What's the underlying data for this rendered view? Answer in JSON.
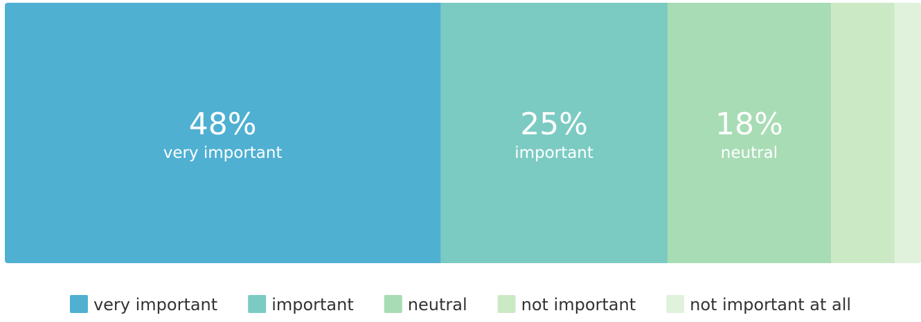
{
  "chart_data": {
    "type": "bar",
    "orientation": "horizontal-stacked",
    "categories": [
      "very important",
      "important",
      "neutral",
      "not important",
      "not important at all"
    ],
    "values": [
      48,
      25,
      18,
      7,
      3
    ],
    "unit": "%",
    "segment_labels": [
      "48%",
      "25%",
      "18%",
      "",
      ""
    ],
    "colors": [
      "#4fb0d2",
      "#7ccbc3",
      "#a8dcb5",
      "#cce9c6",
      "#e0f2db"
    ],
    "legend": {
      "position": "bottom",
      "entries": [
        "very important",
        "important",
        "neutral",
        "not important",
        "not important at all"
      ]
    },
    "title": "",
    "xlabel": "",
    "ylabel": ""
  }
}
